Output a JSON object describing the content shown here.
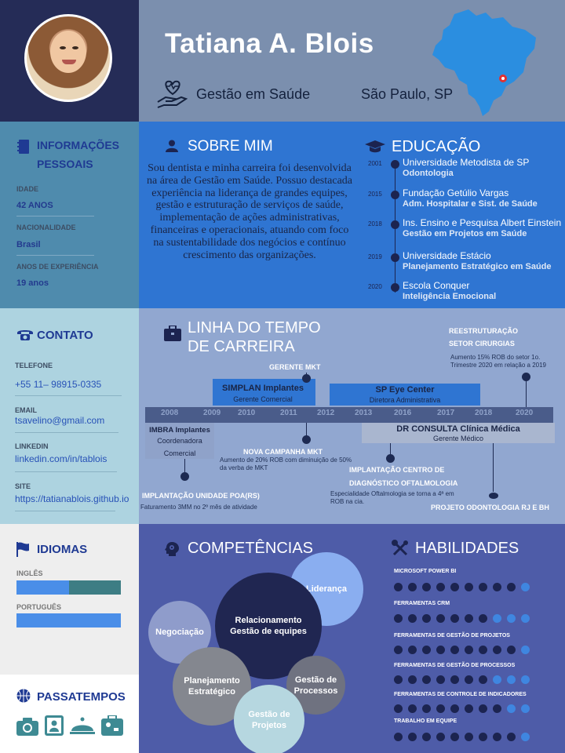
{
  "header": {
    "name": "Tatiana A. Blois",
    "role": "Gestão em Saúde",
    "location": "São Paulo, SP"
  },
  "info": {
    "title_line1": "INFORMAÇÕES",
    "title_line2": "PESSOAIS",
    "items": [
      {
        "label": "IDADE",
        "value": "42 ANOS"
      },
      {
        "label": "NACIONALIDADE",
        "value": "Brasil"
      },
      {
        "label": "ANOS DE EXPERIÊNCIA",
        "value": "19 anos"
      }
    ]
  },
  "about": {
    "title": "SOBRE MIM",
    "text": "Sou dentista e minha carreira foi desenvolvida na área de Gestão em Saúde. Possuo destacada experiência na liderança de grandes equipes, gestão e estruturação de serviços de saúde, implementação de ações administrativas, financeiras e operacionais, atuando com foco na sustentabilidade dos negócios e contínuo crescimento das organizações."
  },
  "education": {
    "title": "EDUCAÇÃO",
    "items": [
      {
        "year": "2001",
        "school": "Universidade Metodista de SP",
        "course": "Odontologia"
      },
      {
        "year": "2015",
        "school": "Fundação Getúlio Vargas",
        "course": "Adm. Hospitalar e Sist. de Saúde"
      },
      {
        "year": "2018",
        "school": "Ins. Ensino e Pesquisa Albert Einstein",
        "course": "Gestão em Projetos em Saúde"
      },
      {
        "year": "2019",
        "school": "Universidade Estácio",
        "course": "Planejamento Estratégico em Saúde"
      },
      {
        "year": "2020",
        "school": "Escola Conquer",
        "course": "Inteligência Emocional"
      }
    ]
  },
  "contact": {
    "title": "CONTATO",
    "items": [
      {
        "label": "TELEFONE",
        "value": "+55 11– 98915-0335"
      },
      {
        "label": "EMAIL",
        "value": "tsavelino@gmail.com"
      },
      {
        "label": "LINKEDIN",
        "value": "linkedin.com/in/tablois"
      },
      {
        "label": "SITE",
        "value": "https://tatianablois.github.io"
      }
    ]
  },
  "timeline": {
    "title_line1": "LINHA DO TEMPO",
    "title_line2": "DE CARREIRA",
    "years": [
      "2008",
      "2009",
      "2010",
      "2011",
      "2012",
      "2013",
      "2016",
      "2017",
      "2018",
      "2020"
    ],
    "jobs": [
      {
        "company": "SIMPLAN Implantes",
        "role": "Gerente Comercial"
      },
      {
        "company": "SP Eye Center",
        "role": "Diretora Administrativa"
      },
      {
        "company": "IMBRA Implantes",
        "role_line1": "Coordenadora",
        "role_line2": "Comercial"
      },
      {
        "company": "DR CONSULTA Clínica Médica",
        "role": "Gerente Médico"
      }
    ],
    "events": {
      "gerente_mkt": "GERENTE MKT",
      "reestruturacao_1": "REESTRUTURAÇÃO",
      "reestruturacao_2": "SETOR CIRURGIAS",
      "reestruturacao_desc_1": "Aumento 15% ROB do setor 1o.",
      "reestruturacao_desc_2": "Trimestre 2020 em relação a 2019",
      "campanha": "NOVA CAMPANHA MKT",
      "campanha_desc_1": "Aumento de 20% ROB com diminuição de 50%",
      "campanha_desc_2": "da verba de MKT",
      "poa": "IMPLANTAÇÃO UNIDADE POA(RS)",
      "poa_desc": "Faturamento 3MM no 2º mês de atividade",
      "oftalmo_1": "IMPLANTAÇÃO CENTRO DE",
      "oftalmo_2": "DIAGNÓSTICO OFTALMOLOGIA",
      "oftalmo_desc_1": "Especialidade Oftalmologia se torna a 4ª em",
      "oftalmo_desc_2": "ROB na cia.",
      "projeto": "PROJETO ODONTOLOGIA RJ E BH"
    }
  },
  "languages": {
    "title": "IDIOMAS",
    "items": [
      {
        "name": "INGLÊS",
        "level": 0.5
      },
      {
        "name": "PORTUGUÊS",
        "level": 1.0
      }
    ]
  },
  "hobbies": {
    "title": "PASSATEMPOS",
    "icons": [
      "camera-icon",
      "portrait-icon",
      "chef-cloche-icon",
      "travel-bag-icon"
    ]
  },
  "competencies": {
    "title": "COMPETÊNCIAS",
    "items": [
      {
        "line1": "Liderança",
        "line2": ""
      },
      {
        "line1": "Relacionamento",
        "line2": "Gestão de  equipes"
      },
      {
        "line1": "Negociação",
        "line2": ""
      },
      {
        "line1": "Planejamento",
        "line2": "Estratégico"
      },
      {
        "line1": "Gestão de",
        "line2": "Processos"
      },
      {
        "line1": "Gestão de",
        "line2": "Projetos"
      }
    ]
  },
  "skills": {
    "title": "HABILIDADES",
    "total": 10,
    "items": [
      {
        "name": "MICROSOFT POWER BI",
        "level": 9
      },
      {
        "name": "FERRAMENTAS CRM",
        "level": 7
      },
      {
        "name": "FERRAMENTAS DE GESTÃO DE PROJETOS",
        "level": 9
      },
      {
        "name": "FERRAMENTAS DE GESTÃO DE PROCESSOS",
        "level": 7
      },
      {
        "name": "FERRAMENTAS DE CONTROLE DE INDICADORES",
        "level": 8
      },
      {
        "name": "TRABALHO EM EQUIPE",
        "level": 9
      }
    ]
  },
  "colors": {
    "dot_filled": "#1c2450",
    "dot_empty": "#3f86e0",
    "lang_fill": "#4a8ee8",
    "lang_rest": "#3d7d84"
  }
}
